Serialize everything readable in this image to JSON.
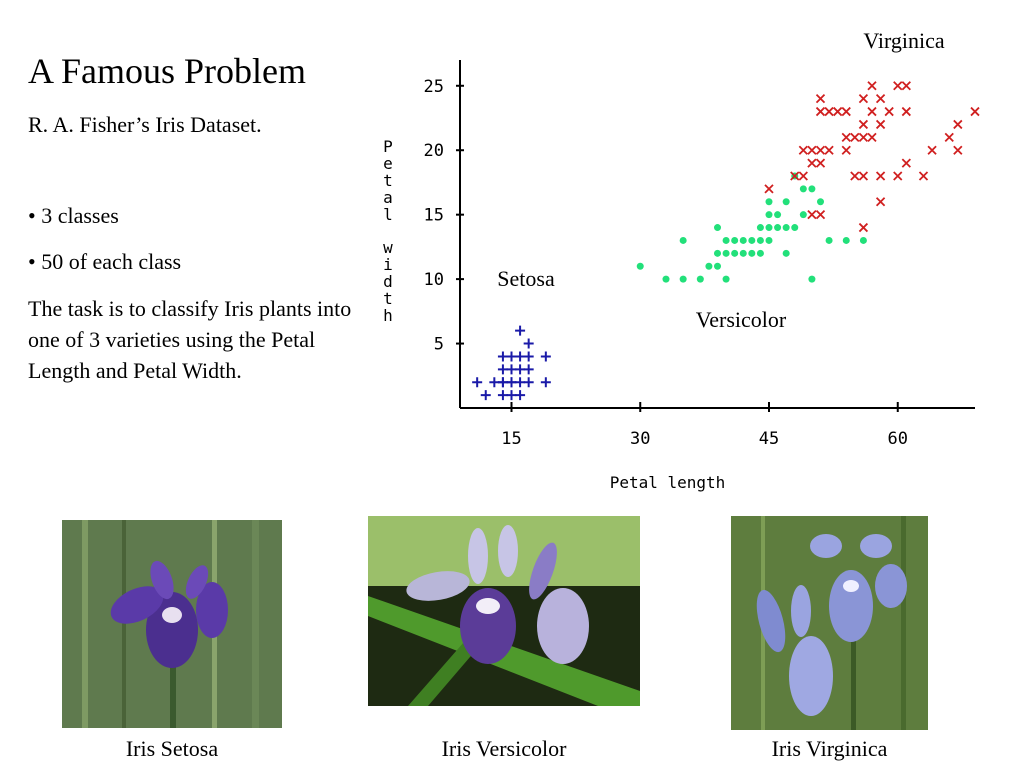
{
  "slide": {
    "title": "A Famous Problem",
    "subtitle": "R. A. Fisher’s Iris Dataset.",
    "bullets": [
      "• 3 classes",
      "• 50 of each class"
    ],
    "task": "The task is to classify Iris plants into one of 3 varieties using the Petal Length and Petal Width."
  },
  "captions": {
    "setosa": "Iris Setosa",
    "versicolor": "Iris Versicolor",
    "virginica": "Iris Virginica"
  },
  "colors": {
    "setosa": "#1a1aa8",
    "versicolor": "#22e07a",
    "virginica": "#d02020",
    "axis": "#000000"
  },
  "chart_data": {
    "type": "scatter",
    "xlabel": "Petal length",
    "ylabel": "Petal width",
    "xticks": [
      "15",
      "30",
      "45",
      "60"
    ],
    "yticks": [
      "5",
      "10",
      "15",
      "20",
      "25"
    ],
    "xlim": [
      9,
      69
    ],
    "ylim": [
      0,
      27
    ],
    "grid": false,
    "series": [
      {
        "name": "Setosa",
        "marker": "plus",
        "color": "#1a1aa8",
        "points": [
          [
            11,
            2
          ],
          [
            12,
            1
          ],
          [
            13,
            2
          ],
          [
            14,
            1
          ],
          [
            14,
            2
          ],
          [
            14,
            3
          ],
          [
            14,
            4
          ],
          [
            15,
            1
          ],
          [
            15,
            2
          ],
          [
            15,
            3
          ],
          [
            15,
            4
          ],
          [
            16,
            1
          ],
          [
            16,
            2
          ],
          [
            16,
            3
          ],
          [
            16,
            4
          ],
          [
            16,
            6
          ],
          [
            17,
            2
          ],
          [
            17,
            3
          ],
          [
            17,
            4
          ],
          [
            17,
            5
          ],
          [
            19,
            2
          ],
          [
            19,
            4
          ],
          [
            14,
            2
          ],
          [
            15,
            2
          ]
        ]
      },
      {
        "name": "Versicolor",
        "marker": "dot",
        "color": "#22e07a",
        "points": [
          [
            30,
            11
          ],
          [
            33,
            10
          ],
          [
            35,
            10
          ],
          [
            35,
            13
          ],
          [
            37,
            10
          ],
          [
            38,
            11
          ],
          [
            39,
            11
          ],
          [
            39,
            12
          ],
          [
            39,
            14
          ],
          [
            40,
            10
          ],
          [
            40,
            12
          ],
          [
            40,
            13
          ],
          [
            41,
            12
          ],
          [
            41,
            13
          ],
          [
            42,
            12
          ],
          [
            42,
            13
          ],
          [
            43,
            12
          ],
          [
            43,
            13
          ],
          [
            44,
            12
          ],
          [
            44,
            13
          ],
          [
            44,
            14
          ],
          [
            45,
            13
          ],
          [
            45,
            14
          ],
          [
            45,
            15
          ],
          [
            45,
            16
          ],
          [
            46,
            14
          ],
          [
            46,
            15
          ],
          [
            47,
            12
          ],
          [
            47,
            14
          ],
          [
            47,
            16
          ],
          [
            48,
            18
          ],
          [
            48,
            14
          ],
          [
            49,
            15
          ],
          [
            50,
            17
          ],
          [
            50,
            10
          ],
          [
            51,
            16
          ],
          [
            52,
            13
          ],
          [
            54,
            13
          ],
          [
            56,
            13
          ],
          [
            49,
            17
          ]
        ]
      },
      {
        "name": "Virginica",
        "marker": "cross",
        "color": "#d02020",
        "points": [
          [
            45,
            17
          ],
          [
            48,
            18
          ],
          [
            49,
            18
          ],
          [
            49,
            20
          ],
          [
            50,
            15
          ],
          [
            50,
            19
          ],
          [
            50,
            20
          ],
          [
            51,
            15
          ],
          [
            51,
            19
          ],
          [
            51,
            20
          ],
          [
            51,
            23
          ],
          [
            51,
            24
          ],
          [
            52,
            20
          ],
          [
            52,
            23
          ],
          [
            53,
            23
          ],
          [
            54,
            21
          ],
          [
            54,
            23
          ],
          [
            55,
            18
          ],
          [
            55,
            21
          ],
          [
            56,
            14
          ],
          [
            56,
            18
          ],
          [
            56,
            21
          ],
          [
            56,
            22
          ],
          [
            56,
            24
          ],
          [
            57,
            21
          ],
          [
            57,
            23
          ],
          [
            57,
            25
          ],
          [
            58,
            18
          ],
          [
            58,
            22
          ],
          [
            58,
            24
          ],
          [
            59,
            23
          ],
          [
            60,
            18
          ],
          [
            60,
            25
          ],
          [
            61,
            19
          ],
          [
            61,
            23
          ],
          [
            61,
            25
          ],
          [
            63,
            18
          ],
          [
            64,
            20
          ],
          [
            66,
            21
          ],
          [
            67,
            20
          ],
          [
            67,
            22
          ],
          [
            69,
            23
          ],
          [
            58,
            16
          ],
          [
            54,
            20
          ]
        ]
      }
    ],
    "annotations": [
      "Virginica",
      "Setosa",
      "Versicolor"
    ]
  }
}
